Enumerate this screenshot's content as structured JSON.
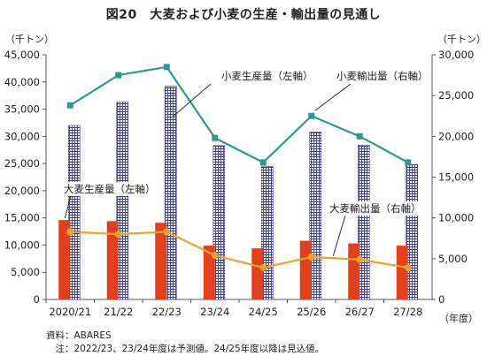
{
  "title": "図20　大麦および小麦の生産・輸出量の見通し",
  "left_axis_unit": "（千トン）",
  "right_axis_unit": "（千トン）",
  "x_axis_unit": "（年度）",
  "source": "資料：ABARES",
  "note": "　注：2022/23、23/24年度は予測値。24/25年度以降は見込値。",
  "colors": {
    "wheat_production": "#3a3a9a",
    "barley_production": "#e2401c",
    "wheat_exports": "#2b9a8a",
    "barley_exports": "#f0a12a"
  },
  "chart_data": {
    "type": "bar+line",
    "categories": [
      "2020/21",
      "21/22",
      "22/23",
      "23/24",
      "24/25",
      "25/26",
      "26/27",
      "27/28"
    ],
    "left_axis": {
      "min": 0,
      "max": 45000,
      "ticks": [
        "0",
        "5,000",
        "10,000",
        "15,000",
        "20,000",
        "25,000",
        "30,000",
        "35,000",
        "40,000",
        "45,000"
      ]
    },
    "right_axis": {
      "min": 0,
      "max": 30000,
      "ticks": [
        "0",
        "5,000",
        "10,000",
        "15,000",
        "20,000",
        "25,000",
        "30,000"
      ]
    },
    "series": [
      {
        "name": "小麦生産量（左軸）",
        "type": "bar",
        "axis": "left",
        "pattern": "grid",
        "values": [
          32000,
          36300,
          39200,
          28300,
          24500,
          30800,
          28400,
          24800
        ]
      },
      {
        "name": "大麦生産量（左軸）",
        "type": "bar",
        "axis": "left",
        "values": [
          14600,
          14400,
          14100,
          9900,
          9400,
          10800,
          10300,
          9900
        ]
      },
      {
        "name": "小麦輸出量（右軸）",
        "type": "line",
        "axis": "right",
        "values": [
          23800,
          27500,
          28500,
          19800,
          16800,
          22500,
          20000,
          16800
        ]
      },
      {
        "name": "大麦輸出量（右軸）",
        "type": "line",
        "axis": "right",
        "values": [
          8300,
          8000,
          8300,
          5400,
          3900,
          5200,
          4900,
          3900
        ]
      }
    ],
    "grid": false,
    "legend": "inline labels"
  }
}
